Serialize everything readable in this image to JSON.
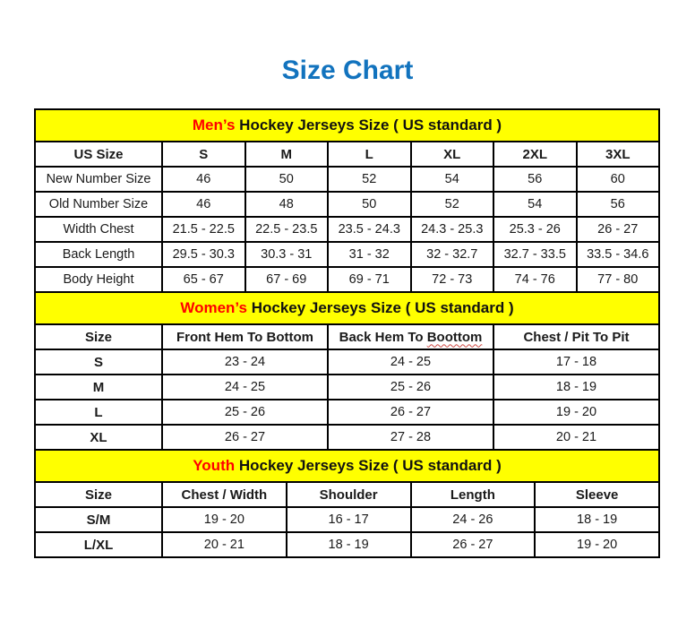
{
  "page": {
    "title": "Size Chart"
  },
  "colors": {
    "title_blue": "#1273be",
    "banner_yellow": "#ffff00",
    "accent_red": "#ff0000",
    "squiggle_red": "#cf4b45"
  },
  "mens": {
    "banner_highlight": "Men’s",
    "banner_rest": "Hockey Jerseys Size ( US standard )",
    "header": [
      "US Size",
      "S",
      "M",
      "L",
      "XL",
      "2XL",
      "3XL"
    ],
    "rows": [
      {
        "label": "New Number Size",
        "values": [
          "46",
          "50",
          "52",
          "54",
          "56",
          "60"
        ]
      },
      {
        "label": "Old Number Size",
        "values": [
          "46",
          "48",
          "50",
          "52",
          "54",
          "56"
        ]
      },
      {
        "label": "Width Chest",
        "values": [
          "21.5 - 22.5",
          "22.5 - 23.5",
          "23.5 - 24.3",
          "24.3 - 25.3",
          "25.3 - 26",
          "26 - 27"
        ]
      },
      {
        "label": "Back Length",
        "values": [
          "29.5 - 30.3",
          "30.3 - 31",
          "31 - 32",
          "32 - 32.7",
          "32.7 - 33.5",
          "33.5 - 34.6"
        ]
      },
      {
        "label": "Body Height",
        "values": [
          "65 - 67",
          "67 - 69",
          "69 - 71",
          "72 - 73",
          "74 - 76",
          "77 - 80"
        ]
      }
    ]
  },
  "womens": {
    "banner_highlight": "Women’s",
    "banner_rest": "Hockey Jerseys Size ( US standard )",
    "header_col0": "Size",
    "header_col1": "Front Hem To Bottom",
    "header_col2_prefix": "Back Hem To",
    "header_col2_misspelled": "Boottom",
    "header_col3": "Chest / Pit To Pit",
    "rows": [
      {
        "label": "S",
        "values": [
          "23 - 24",
          "24 - 25",
          "17 - 18"
        ]
      },
      {
        "label": "M",
        "values": [
          "24 - 25",
          "25 - 26",
          "18 - 19"
        ]
      },
      {
        "label": "L",
        "values": [
          "25 - 26",
          "26 - 27",
          "19 - 20"
        ]
      },
      {
        "label": "XL",
        "values": [
          "26 - 27",
          "27 - 28",
          "20 - 21"
        ]
      }
    ]
  },
  "youth": {
    "banner_highlight": "Youth",
    "banner_rest": "Hockey Jerseys Size ( US standard )",
    "header": [
      "Size",
      "Chest / Width",
      "Shoulder",
      "Length",
      "Sleeve"
    ],
    "rows": [
      {
        "label": "S/M",
        "values": [
          "19 - 20",
          "16 - 17",
          "24 - 26",
          "18 - 19"
        ]
      },
      {
        "label": "L/XL",
        "values": [
          "20 - 21",
          "18 - 19",
          "26 - 27",
          "19 - 20"
        ]
      }
    ]
  }
}
